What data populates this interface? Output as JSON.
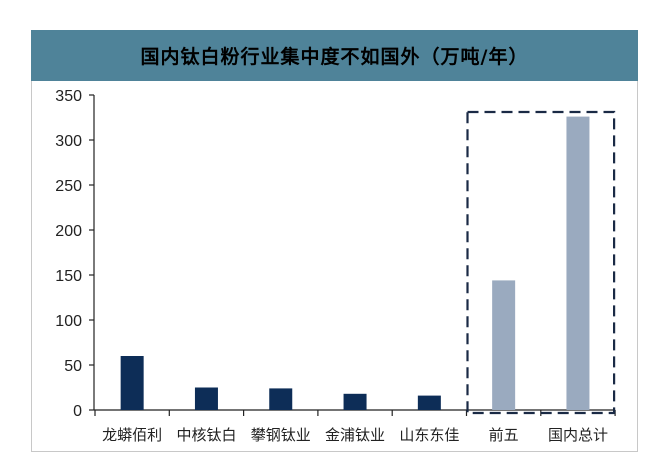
{
  "chart_data": {
    "type": "bar",
    "title": "国内钛白粉行业集中度不如国外（万吨/年）",
    "categories": [
      "龙蟒佰利",
      "中核钛白",
      "攀钢钛业",
      "金浦钛业",
      "山东东佳",
      "前五",
      "国内总计"
    ],
    "values": [
      60,
      25,
      24,
      18,
      16,
      144,
      326
    ],
    "ylim": [
      0,
      350
    ],
    "yticks": [
      0,
      50,
      100,
      150,
      200,
      250,
      300,
      350
    ],
    "grid": false,
    "legend": "none",
    "highlight": {
      "style": "dashed box",
      "categories": [
        "前五",
        "国内总计"
      ]
    },
    "colors": {
      "primary": "#0d2d57",
      "highlighted": "#9aaabf",
      "title_band": "#4f8399",
      "dash": "#1a2a45"
    }
  }
}
